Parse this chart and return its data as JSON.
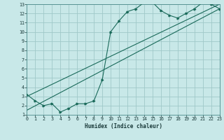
{
  "xlabel": "Humidex (Indice chaleur)",
  "bg_color": "#c8e8e8",
  "grid_color": "#a0c8c8",
  "line_color": "#1a6a5a",
  "xlim": [
    0,
    23
  ],
  "ylim": [
    1,
    13
  ],
  "xticks": [
    0,
    1,
    2,
    3,
    4,
    5,
    6,
    7,
    8,
    9,
    10,
    11,
    12,
    13,
    14,
    15,
    16,
    17,
    18,
    19,
    20,
    21,
    22,
    23
  ],
  "yticks": [
    1,
    2,
    3,
    4,
    5,
    6,
    7,
    8,
    9,
    10,
    11,
    12,
    13
  ],
  "curve1_x": [
    0,
    1,
    2,
    3,
    4,
    5,
    6,
    7,
    8,
    9,
    10,
    11,
    12,
    13,
    14,
    15,
    16,
    17,
    18,
    19,
    20,
    21,
    22,
    23
  ],
  "curve1_y": [
    3.2,
    2.5,
    2.0,
    2.2,
    1.3,
    1.7,
    2.2,
    2.2,
    2.5,
    4.8,
    10.0,
    11.2,
    12.2,
    12.5,
    13.2,
    13.2,
    12.3,
    11.8,
    11.5,
    12.0,
    12.5,
    13.2,
    13.0,
    12.5
  ],
  "line1_x": [
    0,
    23
  ],
  "line1_y": [
    3.0,
    13.0
  ],
  "line2_x": [
    0,
    23
  ],
  "line2_y": [
    1.5,
    12.5
  ],
  "xlabel_fontsize": 5.5,
  "tick_fontsize": 4.8
}
